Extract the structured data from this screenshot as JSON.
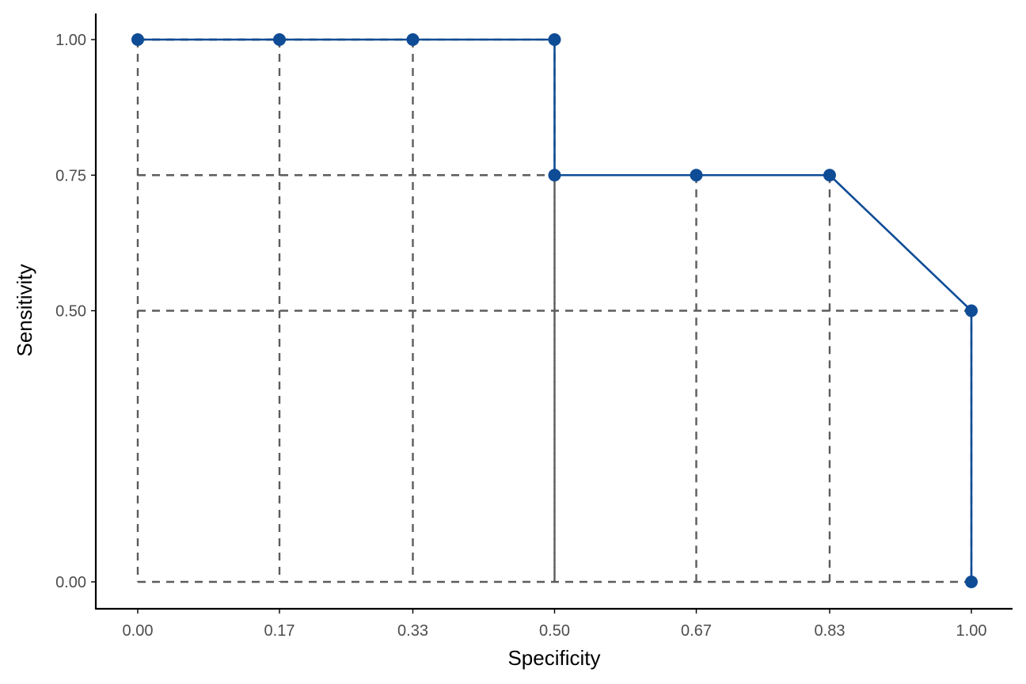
{
  "chart_data": {
    "type": "line",
    "xlabel": "Specificity",
    "ylabel": "Sensitivity",
    "xlim": [
      0,
      1
    ],
    "ylim": [
      0,
      1
    ],
    "grid": false,
    "x_ticks": [
      0,
      0.17,
      0.33,
      0.5,
      0.67,
      0.83,
      1
    ],
    "x_tick_labels": [
      "0.00",
      "0.17",
      "0.33",
      "0.50",
      "0.67",
      "0.83",
      "1.00"
    ],
    "y_ticks": [
      0,
      0.5,
      0.75,
      1
    ],
    "y_tick_labels": [
      "0.00",
      "0.50",
      "0.75",
      "1.00"
    ],
    "series": [
      {
        "x": [
          0,
          0.17,
          0.33,
          0.5,
          0.5,
          0.67,
          0.83,
          1,
          1
        ],
        "y": [
          1,
          1,
          1,
          1,
          0.75,
          0.75,
          0.75,
          0.5,
          0
        ],
        "color": "#0f4c96"
      }
    ],
    "guide_color": "#5c5c5c"
  }
}
